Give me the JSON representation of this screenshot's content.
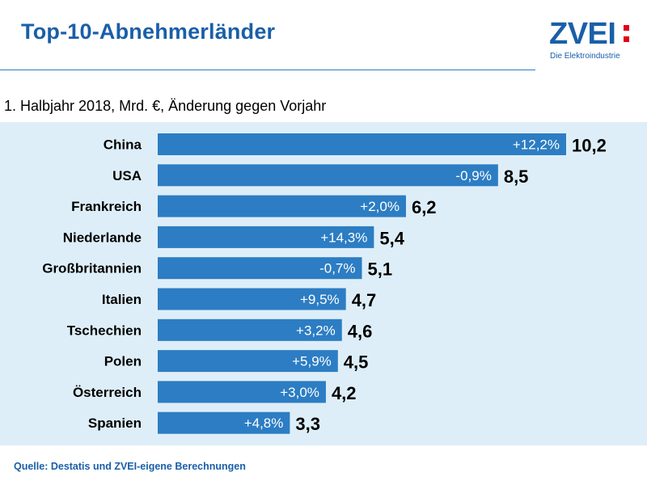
{
  "header": {
    "title": "Top-10-Abnehmerländer",
    "logo_text": "ZVEI",
    "logo_subtitle": "Die Elektroindustrie"
  },
  "colors": {
    "bar": "#2c7dc3",
    "panel": "#deeef8",
    "accent": "#1a5fa8",
    "logo_dots": "#e2001a"
  },
  "chart_data": {
    "type": "bar",
    "orientation": "horizontal",
    "title": "1. Halbjahr 2018, Mrd. €, Änderung gegen Vorjahr",
    "categories": [
      "China",
      "USA",
      "Frankreich",
      "Niederlande",
      "Großbritannien",
      "Italien",
      "Tschechien",
      "Polen",
      "Österreich",
      "Spanien"
    ],
    "values": [
      10.2,
      8.5,
      6.2,
      5.4,
      5.1,
      4.7,
      4.6,
      4.5,
      4.2,
      3.3
    ],
    "value_labels": [
      "10,2",
      "8,5",
      "6,2",
      "5,4",
      "5,1",
      "4,7",
      "4,6",
      "4,5",
      "4,2",
      "3,3"
    ],
    "change_labels": [
      "+12,2%",
      "-0,9%",
      "+2,0%",
      "+14,3%",
      "-0,7%",
      "+9,5%",
      "+3,2%",
      "+5,9%",
      "+3,0%",
      "+4,8%"
    ],
    "xlim": [
      0,
      10.2
    ],
    "grid": false,
    "legend": "none"
  },
  "footer": {
    "source": "Quelle: Destatis und ZVEI-eigene Berechnungen"
  }
}
